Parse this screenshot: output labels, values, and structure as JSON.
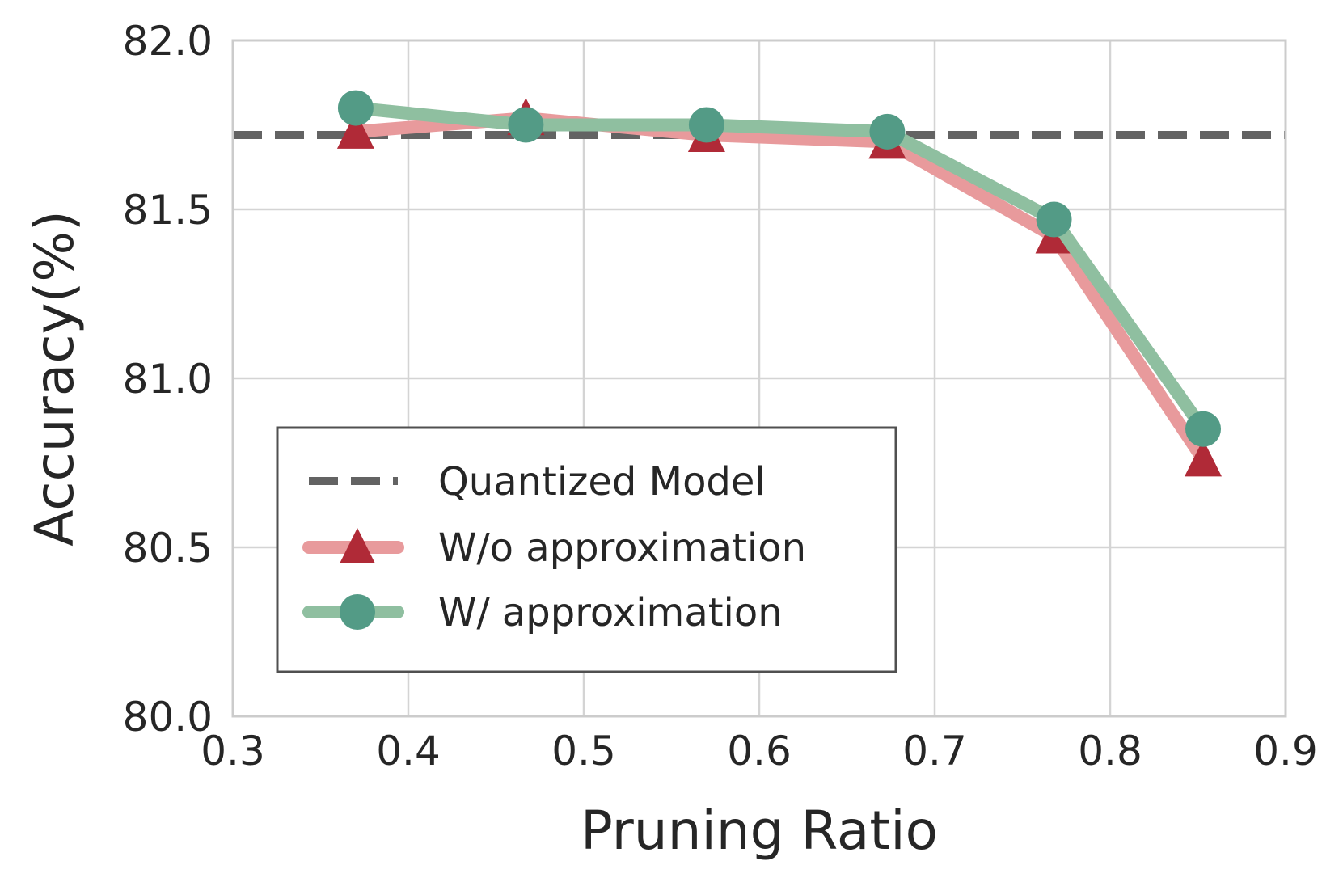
{
  "chart_data": {
    "type": "line",
    "title": "",
    "xlabel": "Pruning Ratio",
    "ylabel": "Accuracy(%)",
    "xlim": [
      0.3,
      0.9
    ],
    "ylim": [
      80.0,
      82.0
    ],
    "xticks": [
      "0.3",
      "0.4",
      "0.5",
      "0.6",
      "0.7",
      "0.8",
      "0.9"
    ],
    "yticks": [
      "80.0",
      "80.5",
      "81.0",
      "81.5",
      "82.0"
    ],
    "grid": true,
    "legend_position": "lower-left",
    "reference_line": {
      "name": "Quantized Model",
      "y": 81.72,
      "color": "#636363"
    },
    "series": [
      {
        "name": "W/o approximation",
        "marker": "triangle",
        "line_color": "#e89a9c",
        "marker_color": "#b02a37",
        "x": [
          0.37,
          0.467,
          0.57,
          0.673,
          0.768,
          0.853
        ],
        "y": [
          81.73,
          81.77,
          81.72,
          81.7,
          81.42,
          80.76
        ]
      },
      {
        "name": "W/ approximation",
        "marker": "circle",
        "line_color": "#8fbfa0",
        "marker_color": "#539b86",
        "x": [
          0.37,
          0.467,
          0.57,
          0.673,
          0.768,
          0.853
        ],
        "y": [
          81.8,
          81.75,
          81.75,
          81.73,
          81.47,
          80.85
        ]
      }
    ]
  }
}
